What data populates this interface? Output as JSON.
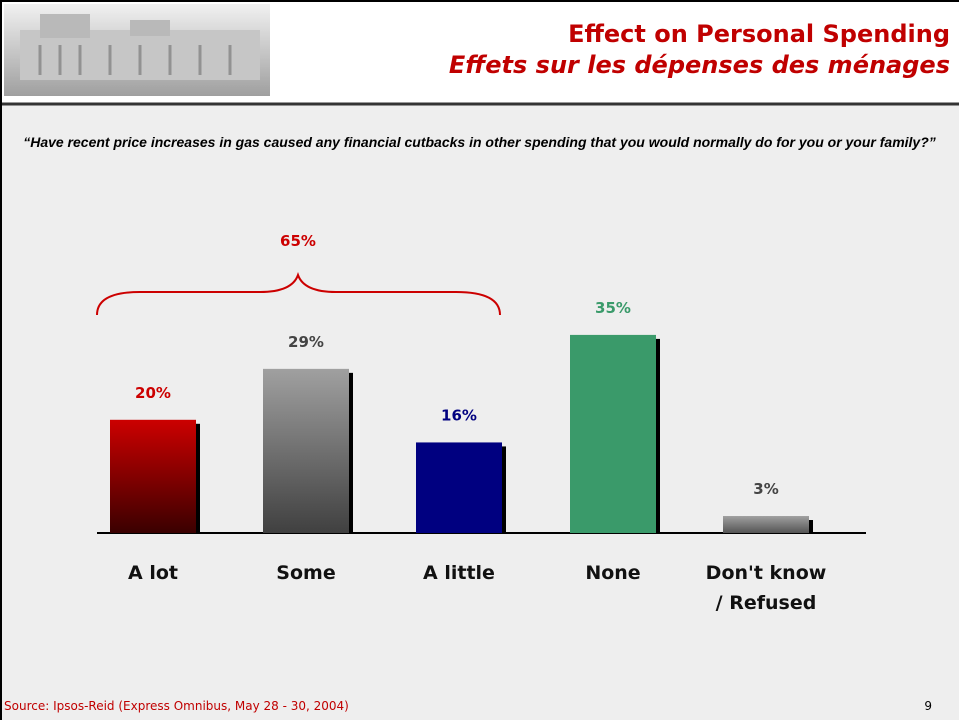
{
  "header": {
    "title_en": "Effect on Personal Spending",
    "title_fr": "Effets sur les dépenses des ménages"
  },
  "question": "“Have recent price increases in gas caused any financial cutbacks in other spending that you would normally do for you or your family?”",
  "chart_data": {
    "type": "bar",
    "categories": [
      "A lot",
      "Some",
      "A little",
      "None",
      "Don't know\n/ Refused"
    ],
    "values": [
      20,
      29,
      16,
      35,
      3
    ],
    "value_labels": [
      "20%",
      "29%",
      "16%",
      "35%",
      "3%"
    ],
    "colors": [
      "#cc0000",
      "#a0a0a0",
      "#000080",
      "#3a9a6a",
      "#a0a0a0"
    ],
    "gradient_to": [
      "#3a0000",
      "#404040",
      null,
      null,
      "#555555"
    ],
    "label_colors": [
      "#cc0000",
      "#444444",
      "#000080",
      "#3a9a6a",
      "#444444"
    ],
    "annotation": "65%"
  },
  "footer": {
    "source": "Source: Ipsos-Reid (Express Omnibus, May 28 - 30, 2004)",
    "page": "9"
  }
}
